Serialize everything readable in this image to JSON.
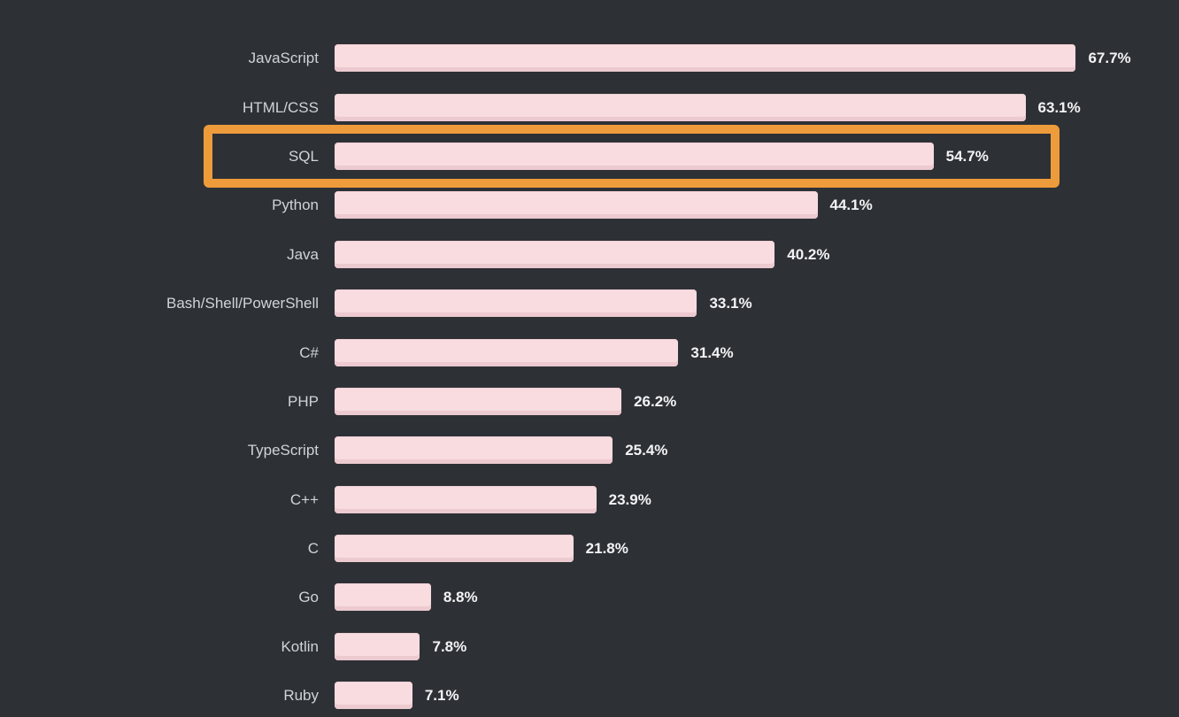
{
  "chart_data": {
    "type": "bar",
    "orientation": "horizontal",
    "title": "",
    "xlabel": "",
    "ylabel": "",
    "categories": [
      "JavaScript",
      "HTML/CSS",
      "SQL",
      "Python",
      "Java",
      "Bash/Shell/PowerShell",
      "C#",
      "PHP",
      "TypeScript",
      "C++",
      "C",
      "Go",
      "Kotlin",
      "Ruby"
    ],
    "values": [
      67.7,
      63.1,
      54.7,
      44.1,
      40.2,
      33.1,
      31.4,
      26.2,
      25.4,
      23.9,
      21.8,
      8.8,
      7.8,
      7.1
    ],
    "value_labels": [
      "67.7%",
      "63.1%",
      "54.7%",
      "44.1%",
      "40.2%",
      "33.1%",
      "31.4%",
      "26.2%",
      "25.4%",
      "23.9%",
      "21.8%",
      "8.8%",
      "7.8%",
      "7.1%"
    ],
    "unit": "%",
    "axis_range": [
      0,
      70
    ],
    "grid": false,
    "legend": false,
    "highlighted_category": "SQL",
    "highlight_style": "orange-rectangle-outline",
    "colors": {
      "background": "#2d3136",
      "bar_fill": "#f8dce0",
      "bar_bottom_edge": "#eccad0",
      "category_label": "#d0d3d7",
      "value_label": "#f2f3f4",
      "highlight_border": "#ee9b3b"
    }
  }
}
